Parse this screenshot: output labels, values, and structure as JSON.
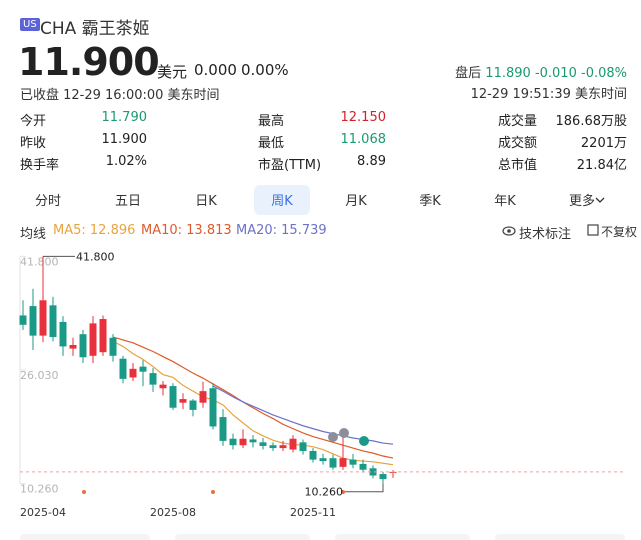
{
  "header": {
    "badge": "US",
    "name": "CHA 霸王茶姬",
    "price": "11.900",
    "currency": "美元",
    "change": "0.000",
    "change_pct": "0.00%",
    "status": "已收盘 12-29 16:00:00 美东时间",
    "after_hours": {
      "label": "盘后",
      "price": "11.890",
      "change": "-0.010",
      "change_pct": "-0.08%",
      "time": "12-29 19:51:39 美东时间"
    }
  },
  "stats": [
    [
      {
        "label": "今开",
        "value": "11.790"
      },
      {
        "label": "最高",
        "value": "12.150"
      },
      {
        "label": "成交量",
        "value": "186.68万股"
      }
    ],
    [
      {
        "label": "昨收",
        "value": "11.900"
      },
      {
        "label": "最低",
        "value": "11.068"
      },
      {
        "label": "成交额",
        "value": "2201万"
      }
    ],
    [
      {
        "label": "换手率",
        "value": "1.02%"
      },
      {
        "label": "市盈(TTM)",
        "value": "8.89"
      },
      {
        "label": "总市值",
        "value": "21.84亿"
      }
    ]
  ],
  "tabs": [
    "分时",
    "五日",
    "日K",
    "周K",
    "月K",
    "季K",
    "年K",
    "更多"
  ],
  "indicator": {
    "label": "均线",
    "tech": "技术标注",
    "adjust": "不复权"
  },
  "chart_data": {
    "type": "candlestick",
    "up_color": "#e8313c",
    "down_color": "#1a9a86",
    "categories": [
      null,
      null,
      "2025-04",
      null,
      null,
      null,
      null,
      null,
      null,
      null,
      null,
      null,
      null,
      null,
      null,
      "2025-08",
      null,
      null,
      null,
      null,
      null,
      null,
      null,
      null,
      null,
      null,
      null,
      null,
      null,
      "2025-11",
      null,
      null,
      null,
      null,
      null,
      null,
      null,
      null
    ],
    "open": [
      33.6,
      34.9,
      30.8,
      35.0,
      32.7,
      29.0,
      31.0,
      28.0,
      28.5,
      30.5,
      27.6,
      25.0,
      26.5,
      25.6,
      23.5,
      23.8,
      21.5,
      21.8,
      21.5,
      23.5,
      19.5,
      16.5,
      15.6,
      16.4,
      16.0,
      15.6,
      15.2,
      15.0,
      16.0,
      14.8,
      13.8,
      13.8,
      12.6,
      13.6,
      13.0,
      12.4,
      11.6,
      11.79
    ],
    "high": [
      35.7,
      37.3,
      41.8,
      36.2,
      33.5,
      30.5,
      31.6,
      33.5,
      33.6,
      31.0,
      28.0,
      27.0,
      27.4,
      26.3,
      24.5,
      24.2,
      22.8,
      22.0,
      24.4,
      24.2,
      20.6,
      17.2,
      17.8,
      17.0,
      16.6,
      16.0,
      16.2,
      17.0,
      16.4,
      15.2,
      14.4,
      14.3,
      17.0,
      14.4,
      13.6,
      12.8,
      11.9,
      12.15
    ],
    "low": [
      31.6,
      28.8,
      29.9,
      30.0,
      28.0,
      28.0,
      27.0,
      27.0,
      28.0,
      27.2,
      24.2,
      24.5,
      23.8,
      23.0,
      22.5,
      20.5,
      20.6,
      19.6,
      20.8,
      17.8,
      15.5,
      15.0,
      15.2,
      15.3,
      15.0,
      14.8,
      14.8,
      14.6,
      14.3,
      13.2,
      12.9,
      12.2,
      12.2,
      12.4,
      11.8,
      11.0,
      10.26,
      11.068
    ],
    "close": [
      32.3,
      30.8,
      35.7,
      30.6,
      29.3,
      29.5,
      27.8,
      32.5,
      33.1,
      28.0,
      24.8,
      26.2,
      25.8,
      24.0,
      24.0,
      20.8,
      22.0,
      20.5,
      23.1,
      18.2,
      16.2,
      15.6,
      16.5,
      16.0,
      15.5,
      15.2,
      15.6,
      16.5,
      14.8,
      13.6,
      13.4,
      12.5,
      13.8,
      12.9,
      12.2,
      11.4,
      10.9,
      11.9
    ],
    "series": [
      {
        "name": "MA5: 12.896",
        "color": "#e8a33d",
        "values": [
          null,
          null,
          null,
          null,
          null,
          null,
          null,
          null,
          null,
          30.0,
          29.3,
          28.3,
          27.5,
          26.5,
          25.4,
          25.0,
          23.9,
          23.1,
          22.3,
          21.9,
          21.2,
          19.8,
          18.7,
          17.6,
          16.9,
          16.3,
          15.9,
          15.7,
          15.6,
          15.4,
          15.0,
          14.4,
          13.8,
          13.5,
          13.4,
          13.3,
          13.1,
          12.896
        ]
      },
      {
        "name": "MA10: 13.813",
        "color": "#e0592a",
        "values": [
          null,
          null,
          null,
          null,
          null,
          null,
          null,
          null,
          null,
          30.6,
          30.2,
          29.8,
          29.2,
          28.6,
          27.9,
          27.2,
          26.4,
          25.6,
          24.9,
          24.1,
          23.3,
          22.5,
          21.6,
          20.8,
          20.0,
          19.3,
          18.5,
          17.9,
          17.3,
          16.8,
          16.4,
          16.0,
          15.6,
          15.2,
          14.8,
          14.5,
          14.1,
          13.813
        ]
      },
      {
        "name": "MA20: 15.739",
        "color": "#6b72c8",
        "values": [
          null,
          null,
          null,
          null,
          null,
          null,
          null,
          null,
          null,
          null,
          null,
          null,
          null,
          null,
          null,
          null,
          null,
          null,
          null,
          23.8,
          23.1,
          22.3,
          21.6,
          21.0,
          20.4,
          19.8,
          19.3,
          18.8,
          18.3,
          17.9,
          17.5,
          17.2,
          16.9,
          16.6,
          16.4,
          16.2,
          15.9,
          15.739
        ]
      }
    ],
    "ylim": [
      8.0,
      42.4
    ],
    "yticks": [
      {
        "value": 41.8,
        "label": "41.800"
      },
      {
        "value": 26.03,
        "label": "26.030"
      },
      {
        "value": 10.26,
        "label": "10.260"
      }
    ],
    "annotations": [
      {
        "value": 41.8,
        "label": "41.800"
      },
      {
        "value": 10.26,
        "label": "10.260"
      }
    ]
  }
}
